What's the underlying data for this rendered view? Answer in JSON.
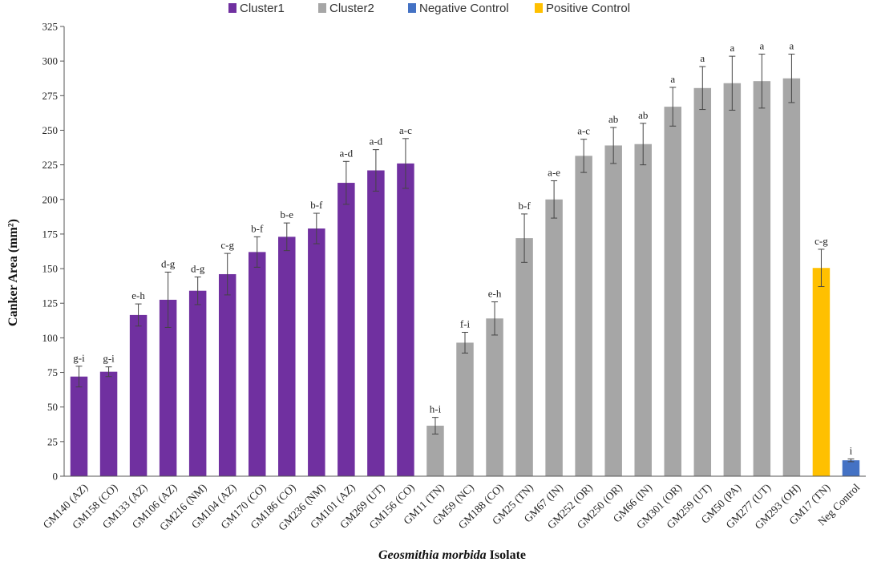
{
  "chart_data": {
    "type": "bar",
    "title": "",
    "xlabel_italic": "Geosmithia morbida",
    "xlabel_rest": " Isolate",
    "ylabel": "Canker Area (mm²)",
    "ylim": [
      0,
      325
    ],
    "yticks": [
      0,
      25,
      50,
      75,
      100,
      125,
      150,
      175,
      200,
      225,
      250,
      275,
      300,
      325
    ],
    "legend": [
      {
        "name": "Cluster1",
        "color": "#7030a0"
      },
      {
        "name": "Cluster2",
        "color": "#a6a6a6"
      },
      {
        "name": "Negative Control",
        "color": "#4472c4"
      },
      {
        "name": "Positive Control",
        "color": "#ffc000"
      }
    ],
    "categories": [
      "GM140 (AZ)",
      "GM158 (CO)",
      "GM133 (AZ)",
      "GM106 (AZ)",
      "GM216 (NM)",
      "GM104 (AZ)",
      "GM170 (CO)",
      "GM186 (CO)",
      "GM236 (NM)",
      "GM101 (AZ)",
      "GM269 (UT)",
      "GM156 (CO)",
      "GM11 (TN)",
      "GM59 (NC)",
      "GM188 (CO)",
      "GM25 (TN)",
      "GM67 (IN)",
      "GM252 (OR)",
      "GM250 (OR)",
      "GM66 (IN)",
      "GM301 (OR)",
      "GM259 (UT)",
      "GM50 (PA)",
      "GM277 (UT)",
      "GM293 (OH)",
      "GM17 (TN)",
      "Neg Control"
    ],
    "values": [
      72,
      75.5,
      116.5,
      127.5,
      134,
      146,
      162,
      173,
      179,
      212,
      221,
      226,
      36.5,
      96.5,
      114,
      172,
      200,
      231.5,
      239,
      240,
      267,
      280.5,
      284,
      285.5,
      287.5,
      150.5,
      11.5
    ],
    "errors": [
      7.5,
      3.5,
      8,
      20,
      10,
      15,
      11,
      10,
      11,
      15.5,
      15,
      18,
      6,
      7.5,
      12,
      17.5,
      13.5,
      12,
      13,
      15,
      14,
      15.5,
      19.5,
      19.5,
      17.5,
      13.5,
      1
    ],
    "groups": [
      "Cluster1",
      "Cluster1",
      "Cluster1",
      "Cluster1",
      "Cluster1",
      "Cluster1",
      "Cluster1",
      "Cluster1",
      "Cluster1",
      "Cluster1",
      "Cluster1",
      "Cluster1",
      "Cluster2",
      "Cluster2",
      "Cluster2",
      "Cluster2",
      "Cluster2",
      "Cluster2",
      "Cluster2",
      "Cluster2",
      "Cluster2",
      "Cluster2",
      "Cluster2",
      "Cluster2",
      "Cluster2",
      "Positive Control",
      "Negative Control"
    ],
    "significance": [
      "g-i",
      "g-i",
      "e-h",
      "d-g",
      "d-g",
      "c-g",
      "b-f",
      "b-e",
      "b-f",
      "a-d",
      "a-d",
      "a-c",
      "h-i",
      "f-i",
      "e-h",
      "b-f",
      "a-e",
      "a-c",
      "ab",
      "ab",
      "a",
      "a",
      "a",
      "a",
      "a",
      "c-g",
      "i"
    ],
    "grid": false,
    "legend_position": "top"
  }
}
